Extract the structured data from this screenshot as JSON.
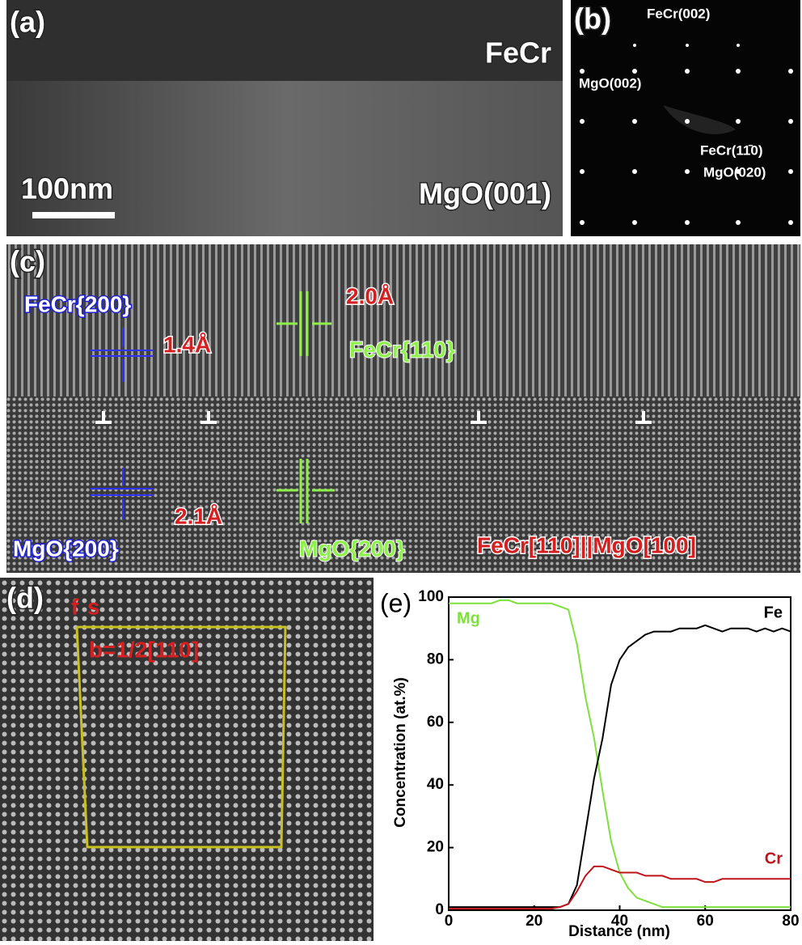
{
  "panels": {
    "a": {
      "label": "(a)",
      "phase_top": "FeCr",
      "scale_bar": "100nm",
      "phase_bottom": "MgO(001)"
    },
    "b": {
      "label": "(b)",
      "spot1": "FeCr(002)",
      "spot2": "MgO(002)",
      "spot3": "FeCr(11̄0)",
      "spot4": "MgO(020)"
    },
    "c": {
      "label": "(c)",
      "feCr200": "FeCr{200}",
      "d1": "1.4Å",
      "d2": "2.0Å",
      "feCr110": "FeCr{110}",
      "mgO200_blue": "MgO{200}",
      "d3": "2.1Å",
      "mgO200_green": "MgO{200}",
      "orientation": "FeCr[110]||MgO[100]"
    },
    "d": {
      "label": "(d)",
      "f": "f",
      "s": "s",
      "burgers": "b=1/2[110]"
    }
  },
  "chart_data": {
    "type": "line",
    "label": "(e)",
    "x_label": "Distance (nm)",
    "y_label": "Concentration (at.%)",
    "x": [
      0,
      2,
      4,
      6,
      8,
      10,
      12,
      14,
      16,
      18,
      20,
      22,
      24,
      26,
      28,
      30,
      32,
      34,
      36,
      38,
      40,
      42,
      44,
      46,
      48,
      50,
      52,
      54,
      56,
      58,
      60,
      62,
      64,
      66,
      68,
      70,
      72,
      74,
      76,
      78,
      80
    ],
    "xlim": [
      0,
      80
    ],
    "ylim": [
      0,
      100
    ],
    "xticks": [
      0,
      20,
      40,
      60,
      80
    ],
    "yticks": [
      0,
      20,
      40,
      60,
      80,
      100
    ],
    "series": [
      {
        "name": "Mg",
        "color": "#7de03c",
        "values": [
          98,
          98,
          98,
          98,
          98,
          98,
          99,
          99,
          98,
          98,
          98,
          98,
          98,
          97,
          96,
          85,
          68,
          55,
          38,
          22,
          12,
          7,
          4,
          3,
          2,
          1,
          1,
          1,
          1,
          1,
          1,
          1,
          1,
          1,
          1,
          1,
          1,
          1,
          1,
          1,
          1
        ]
      },
      {
        "name": "Fe",
        "color": "#000000",
        "values": [
          1,
          1,
          1,
          1,
          1,
          1,
          1,
          1,
          1,
          1,
          1,
          1,
          1,
          1,
          2,
          8,
          25,
          42,
          55,
          72,
          80,
          84,
          86,
          88,
          89,
          89,
          89,
          90,
          90,
          90,
          91,
          90,
          89,
          90,
          90,
          90,
          89,
          90,
          89,
          90,
          89
        ]
      },
      {
        "name": "Cr",
        "color": "#c0141c",
        "values": [
          0.5,
          0.5,
          0.5,
          0.5,
          0.5,
          0.5,
          0.5,
          0.5,
          0.5,
          0.5,
          0.5,
          0.5,
          0.5,
          1,
          2,
          6,
          11,
          14,
          14,
          13,
          12,
          12,
          12,
          11,
          11,
          11,
          10,
          10,
          10,
          10,
          9,
          9,
          10,
          10,
          10,
          10,
          10,
          10,
          10,
          10,
          10
        ]
      }
    ]
  }
}
